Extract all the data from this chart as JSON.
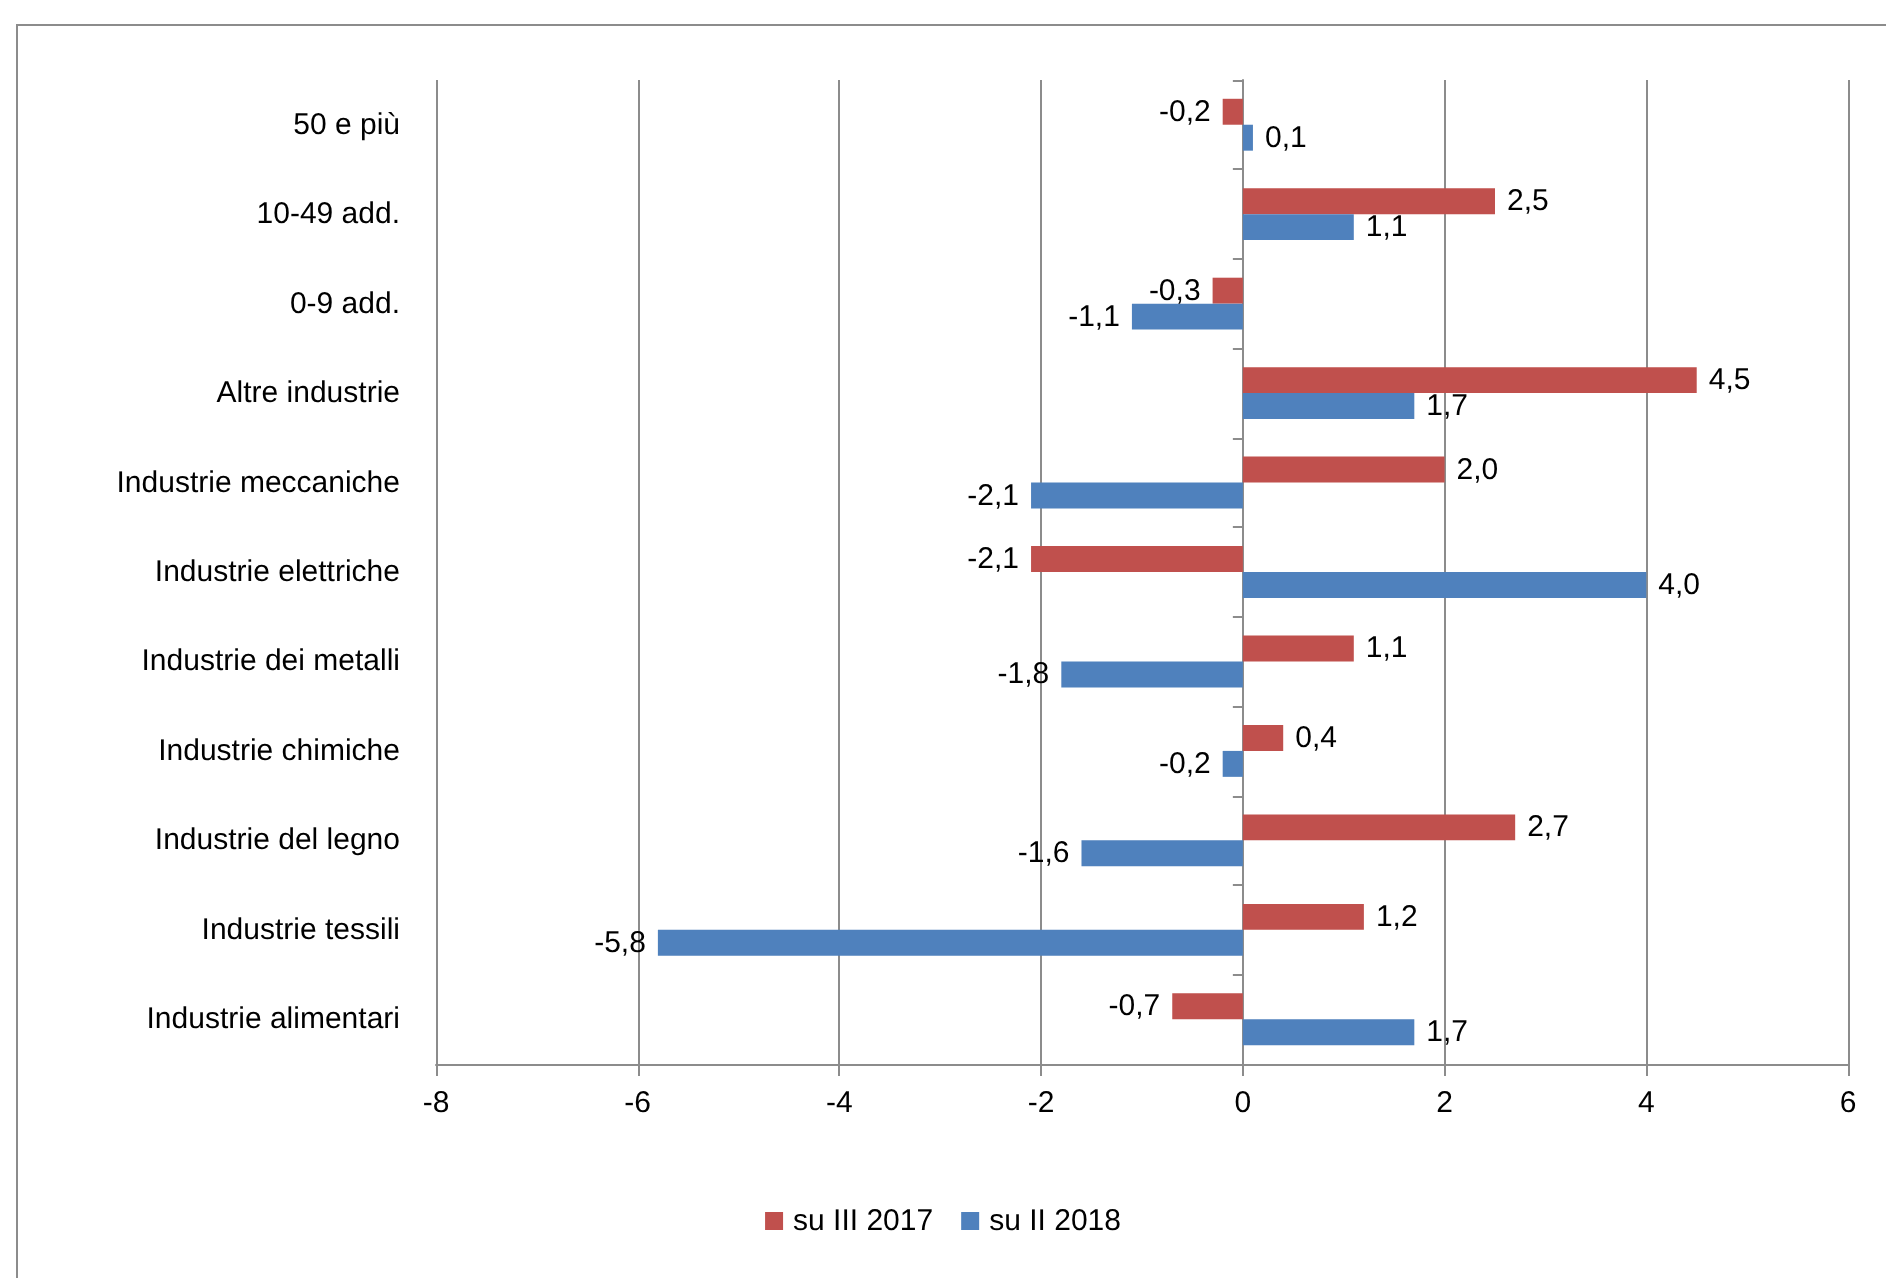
{
  "chart_data": {
    "type": "bar",
    "orientation": "horizontal",
    "categories": [
      "50 e più",
      "10-49 add.",
      "0-9 add.",
      "Altre industrie",
      "Industrie meccaniche",
      "Industrie elettriche",
      "Industrie dei metalli",
      "Industrie chimiche",
      "Industrie del legno",
      "Industrie tessili",
      "Industrie alimentari"
    ],
    "series": [
      {
        "name": "su III 2017",
        "color": "#c0504d",
        "values": [
          -0.2,
          2.5,
          -0.3,
          4.5,
          2.0,
          -2.1,
          1.1,
          0.4,
          2.7,
          1.2,
          -0.7
        ],
        "value_labels": [
          "-0,2",
          "2,5",
          "-0,3",
          "4,5",
          "2,0",
          "-2,1",
          "1,1",
          "0,4",
          "2,7",
          "1,2",
          "-0,7"
        ]
      },
      {
        "name": "su II 2018",
        "color": "#4f81bd",
        "values": [
          0.1,
          1.1,
          -1.1,
          1.7,
          -2.1,
          4.0,
          -1.8,
          -0.2,
          -1.6,
          -5.8,
          1.7
        ],
        "value_labels": [
          "0,1",
          "1,1",
          "-1,1",
          "1,7",
          "-2,1",
          "4,0",
          "-1,8",
          "-0,2",
          "-1,6",
          "-5,8",
          "1,7"
        ]
      }
    ],
    "xlim": [
      -8,
      6
    ],
    "xticks": [
      -8,
      -6,
      -4,
      -2,
      0,
      2,
      4,
      6
    ],
    "grid": "x",
    "legend": "bottom"
  }
}
